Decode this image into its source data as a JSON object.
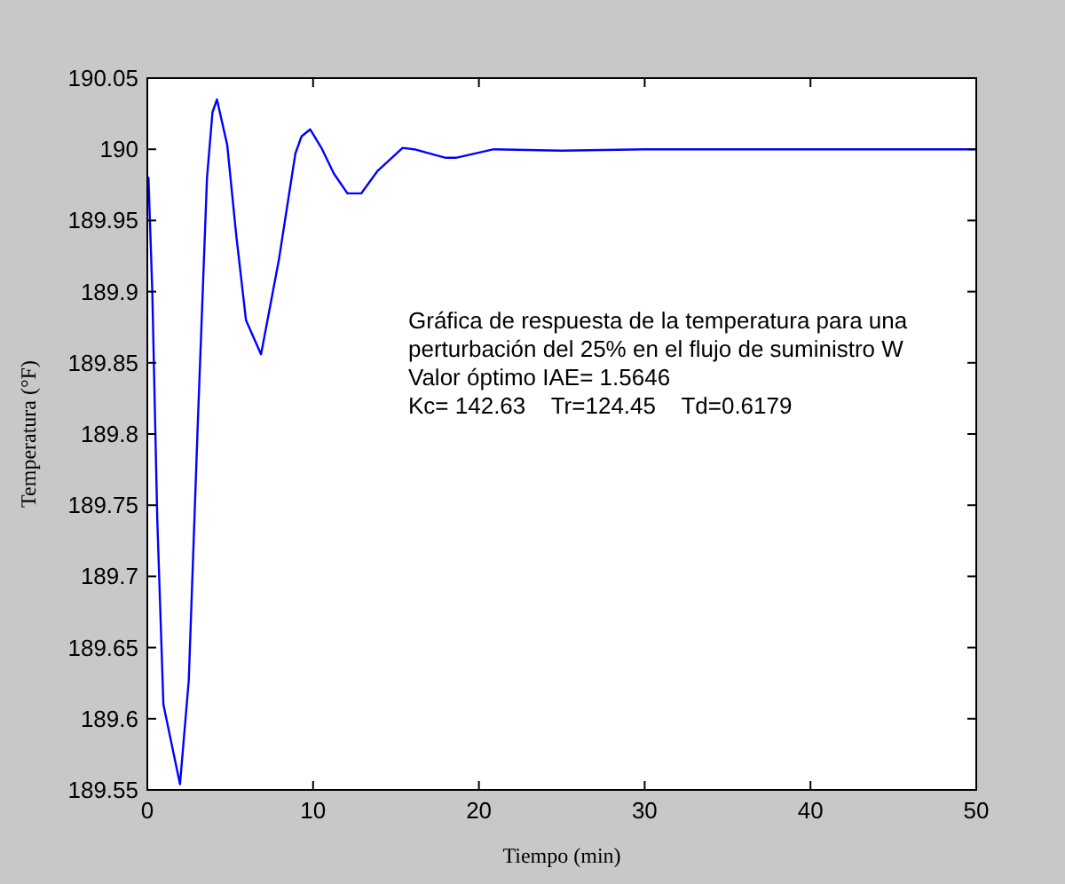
{
  "chart_data": {
    "type": "line",
    "xlabel": "Tiempo (min)",
    "ylabel": "Temperatura (°F)",
    "annotations": [
      "Gráfica de respuesta de la temperatura para una",
      "perturbación del 25% en el flujo de suministro W",
      "Valor óptimo IAE= 1.5646",
      "Kc= 142.63    Tr=124.45    Td=0.6179"
    ],
    "xlim": [
      0,
      50
    ],
    "xticks": [
      0,
      10,
      20,
      30,
      40,
      50
    ],
    "ylim": [
      189.55,
      190.05
    ],
    "yticks": [
      189.55,
      189.6,
      189.65,
      189.7,
      189.75,
      189.8,
      189.85,
      189.9,
      189.95,
      190,
      190.05
    ],
    "grid": false,
    "marker": "none",
    "line_style": "solid",
    "series": [
      {
        "color": "#0000ff",
        "x": [
          0,
          0.07,
          0.3,
          0.6,
          0.97,
          1.97,
          2.5,
          3.04,
          3.6,
          3.93,
          4.2,
          4.82,
          5.36,
          5.95,
          6.86,
          7.93,
          8.93,
          9.3,
          9.82,
          10.5,
          11.25,
          12.07,
          12.9,
          13.9,
          15.4,
          16.1,
          18,
          18.6,
          20.9,
          25,
          30,
          40,
          50
        ],
        "values": [
          189.98,
          189.98,
          189.9,
          189.74,
          189.61,
          189.554,
          189.627,
          189.806,
          189.98,
          190.026,
          190.035,
          190.003,
          189.94,
          189.88,
          189.856,
          189.922,
          189.997,
          190.009,
          190.014,
          190.001,
          189.983,
          189.969,
          189.969,
          189.985,
          190.001,
          190,
          189.994,
          189.994,
          190,
          189.999,
          190,
          190,
          190
        ]
      }
    ]
  }
}
